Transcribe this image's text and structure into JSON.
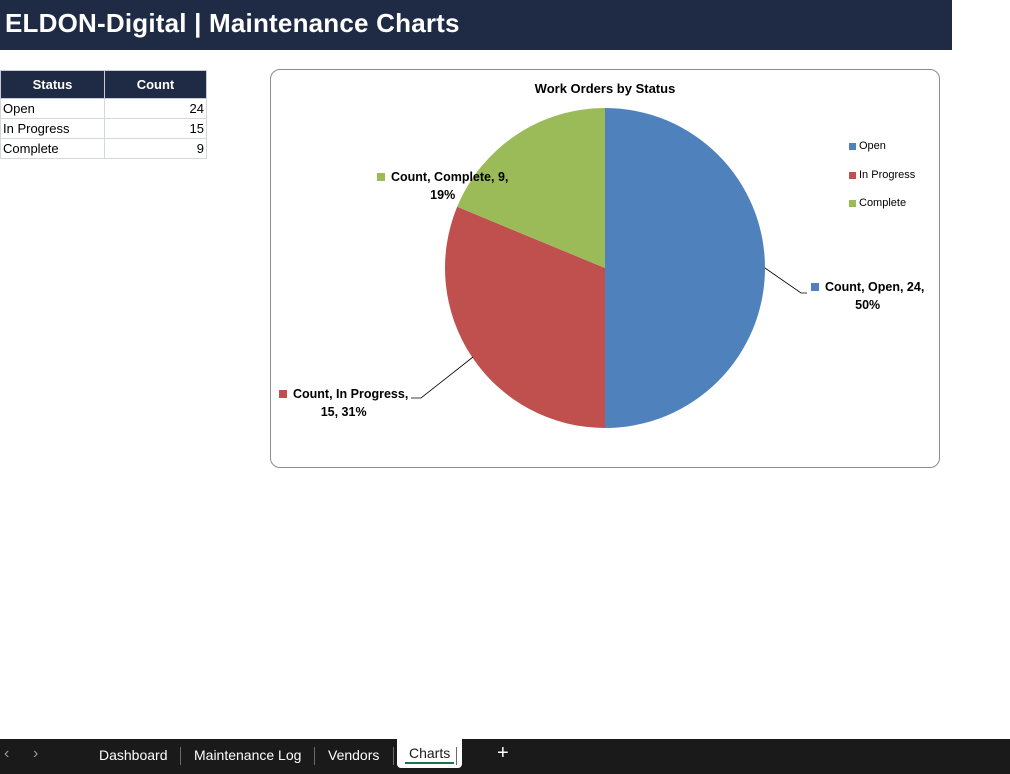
{
  "header": {
    "title": "ELDON-Digital | Maintenance Charts"
  },
  "table": {
    "headers": [
      "Status",
      "Count"
    ],
    "rows": [
      {
        "status": "Open",
        "count": "24"
      },
      {
        "status": "In Progress",
        "count": "15"
      },
      {
        "status": "Complete",
        "count": "9"
      }
    ]
  },
  "chart_data": {
    "type": "pie",
    "title": "Work Orders by Status",
    "categories": [
      "Open",
      "In Progress",
      "Complete"
    ],
    "values": [
      24,
      15,
      9
    ],
    "series": [
      {
        "name": "Count",
        "values": [
          24,
          15,
          9
        ]
      }
    ],
    "colors": [
      "#4f81bd",
      "#c0504d",
      "#9bbb59"
    ],
    "data_labels": [
      [
        "Count, Open, 24,",
        "50%"
      ],
      [
        "Count, In Progress,",
        "15, 31%"
      ],
      [
        "Count, Complete, 9,",
        "19%"
      ]
    ],
    "legend": {
      "position": "right",
      "entries": [
        "Open",
        "In Progress",
        "Complete"
      ]
    }
  },
  "tabs": {
    "items": [
      "Dashboard",
      "Maintenance Log",
      "Vendors",
      "Charts"
    ],
    "active": "Charts",
    "prev_icon": "chevron-left-icon",
    "next_icon": "chevron-right-icon",
    "add_icon": "plus-icon"
  }
}
